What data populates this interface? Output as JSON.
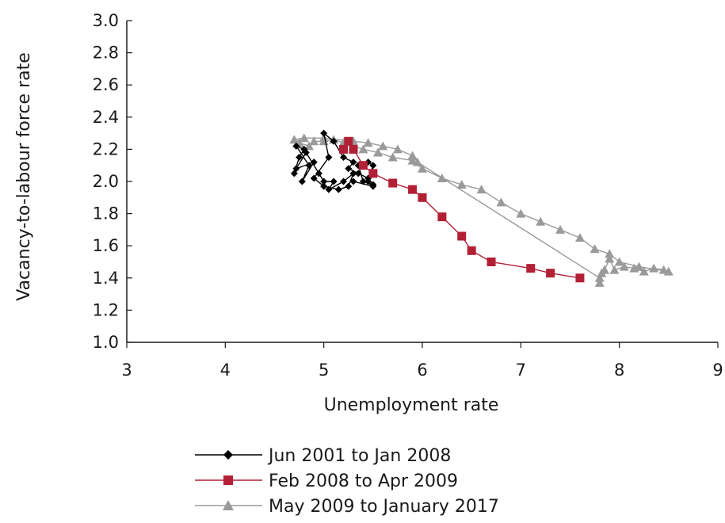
{
  "chart_data": {
    "type": "line",
    "title": "",
    "xlabel": "Unemployment rate",
    "ylabel": "Vacancy-to-labour force rate",
    "xlim": [
      3,
      9
    ],
    "ylim": [
      1.0,
      3.0
    ],
    "x_ticks": [
      "3",
      "4",
      "5",
      "6",
      "7",
      "8",
      "9"
    ],
    "y_ticks": [
      "1.0",
      "1.2",
      "1.4",
      "1.6",
      "1.8",
      "2.0",
      "2.2",
      "2.4",
      "2.6",
      "2.8",
      "3.0"
    ],
    "grid": false,
    "legend_position": "bottom",
    "series": [
      {
        "name": "Jun 2001 to Jan 2008",
        "color": "#000000",
        "marker": "diamond",
        "points": [
          [
            4.7,
            2.05
          ],
          [
            4.75,
            2.15
          ],
          [
            4.8,
            2.2
          ],
          [
            4.72,
            2.22
          ],
          [
            4.85,
            2.1
          ],
          [
            4.78,
            2.0
          ],
          [
            4.9,
            2.12
          ],
          [
            4.72,
            2.08
          ],
          [
            4.82,
            2.18
          ],
          [
            4.95,
            2.05
          ],
          [
            5.0,
            2.0
          ],
          [
            5.1,
            2.0
          ],
          [
            5.05,
            1.95
          ],
          [
            5.2,
            2.0
          ],
          [
            5.3,
            2.05
          ],
          [
            5.25,
            1.97
          ],
          [
            5.15,
            1.95
          ],
          [
            5.0,
            1.97
          ],
          [
            4.9,
            2.02
          ],
          [
            5.05,
            2.15
          ],
          [
            5.0,
            2.3
          ],
          [
            5.1,
            2.25
          ],
          [
            5.2,
            2.15
          ],
          [
            5.3,
            2.12
          ],
          [
            5.25,
            2.08
          ],
          [
            5.35,
            2.05
          ],
          [
            5.45,
            2.02
          ],
          [
            5.5,
            1.98
          ],
          [
            5.4,
            2.0
          ],
          [
            5.35,
            2.1
          ],
          [
            5.45,
            2.12
          ],
          [
            5.5,
            2.1
          ],
          [
            5.45,
            2.0
          ],
          [
            5.5,
            1.97
          ],
          [
            5.3,
            2.0
          ]
        ]
      },
      {
        "name": "Feb 2008 to Apr 2009",
        "color": "#b22035",
        "marker": "square",
        "points": [
          [
            5.2,
            2.2
          ],
          [
            5.25,
            2.25
          ],
          [
            5.3,
            2.2
          ],
          [
            5.4,
            2.1
          ],
          [
            5.5,
            2.05
          ],
          [
            5.7,
            1.99
          ],
          [
            5.9,
            1.95
          ],
          [
            6.0,
            1.9
          ],
          [
            6.2,
            1.78
          ],
          [
            6.4,
            1.66
          ],
          [
            6.5,
            1.57
          ],
          [
            6.7,
            1.5
          ],
          [
            7.1,
            1.46
          ],
          [
            7.3,
            1.43
          ],
          [
            7.6,
            1.4
          ]
        ]
      },
      {
        "name": "May 2009 to January 2017",
        "color": "#9a9a9a",
        "marker": "triangle",
        "points": [
          [
            7.8,
            1.37
          ],
          [
            7.85,
            1.45
          ],
          [
            7.9,
            1.52
          ],
          [
            7.95,
            1.45
          ],
          [
            8.05,
            1.47
          ],
          [
            8.15,
            1.46
          ],
          [
            8.25,
            1.44
          ],
          [
            8.35,
            1.46
          ],
          [
            8.45,
            1.45
          ],
          [
            8.5,
            1.44
          ],
          [
            8.2,
            1.47
          ],
          [
            8.0,
            1.5
          ],
          [
            7.9,
            1.55
          ],
          [
            7.75,
            1.58
          ],
          [
            7.6,
            1.65
          ],
          [
            7.4,
            1.7
          ],
          [
            7.2,
            1.75
          ],
          [
            7.0,
            1.8
          ],
          [
            6.8,
            1.87
          ],
          [
            6.6,
            1.95
          ],
          [
            6.4,
            1.98
          ],
          [
            6.2,
            2.02
          ],
          [
            6.0,
            2.08
          ],
          [
            5.9,
            2.13
          ],
          [
            5.7,
            2.15
          ],
          [
            5.55,
            2.18
          ],
          [
            5.4,
            2.2
          ],
          [
            5.3,
            2.22
          ],
          [
            5.2,
            2.24
          ],
          [
            5.1,
            2.26
          ],
          [
            5.0,
            2.25
          ],
          [
            4.9,
            2.25
          ],
          [
            4.85,
            2.22
          ],
          [
            4.75,
            2.24
          ],
          [
            4.7,
            2.26
          ],
          [
            4.8,
            2.27
          ],
          [
            5.0,
            2.27
          ],
          [
            5.3,
            2.25
          ],
          [
            5.45,
            2.24
          ],
          [
            5.6,
            2.22
          ],
          [
            5.75,
            2.2
          ],
          [
            5.9,
            2.16
          ],
          [
            5.95,
            2.12
          ],
          [
            7.8,
            1.4
          ],
          [
            7.82,
            1.43
          ]
        ]
      }
    ]
  }
}
